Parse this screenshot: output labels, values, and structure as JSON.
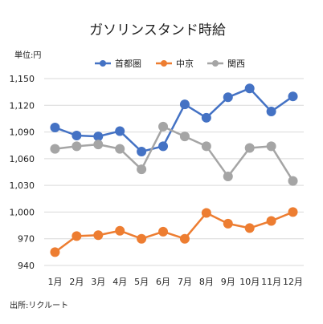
{
  "chart_data": {
    "type": "line",
    "title": "ガソリンスタンド時給",
    "unit_label": "単位:円",
    "source": "出所:リクルート",
    "categories": [
      "1月",
      "2月",
      "3月",
      "4月",
      "5月",
      "6月",
      "7月",
      "8月",
      "9月",
      "10月",
      "11月",
      "12月"
    ],
    "ylim": [
      940,
      1150
    ],
    "yticks": [
      940,
      970,
      1000,
      1030,
      1060,
      1090,
      1120,
      1150
    ],
    "ytick_labels": [
      "940",
      "970",
      "1,000",
      "1,030",
      "1,060",
      "1,090",
      "1,120",
      "1,150"
    ],
    "grid": true,
    "legend_position": "top",
    "series": [
      {
        "name": "首都圏",
        "color": "#4472c4",
        "values": [
          1095,
          1086,
          1085,
          1091,
          1068,
          1074,
          1121,
          1106,
          1129,
          1139,
          1113,
          1130
        ]
      },
      {
        "name": "中京",
        "color": "#ed7d31",
        "values": [
          955,
          973,
          974,
          979,
          970,
          978,
          970,
          999,
          987,
          982,
          990,
          1000
        ]
      },
      {
        "name": "関西",
        "color": "#a5a5a5",
        "values": [
          1071,
          1074,
          1076,
          1071,
          1048,
          1096,
          1085,
          1074,
          1040,
          1072,
          1074,
          1035
        ]
      }
    ]
  }
}
